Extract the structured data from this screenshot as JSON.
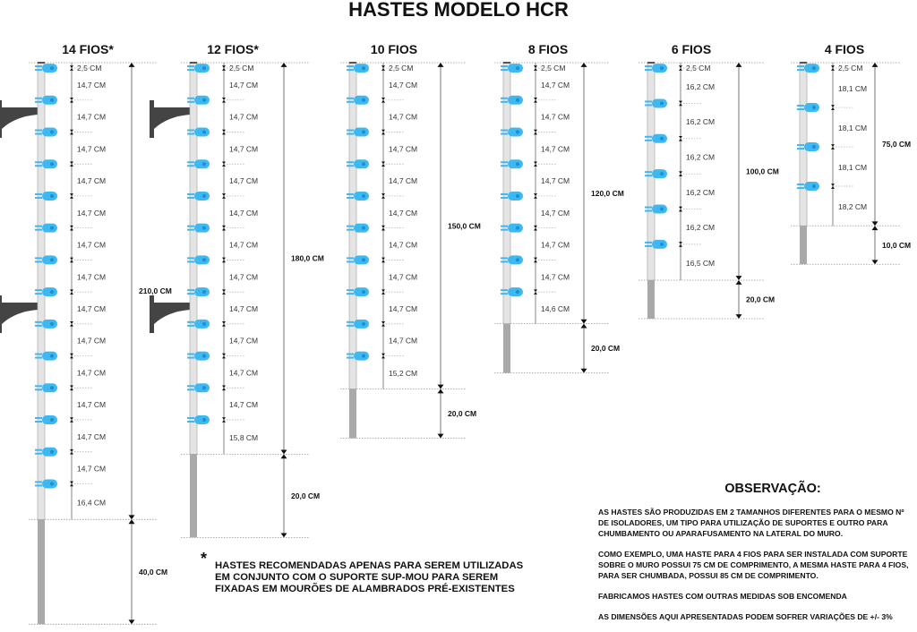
{
  "title": "HASTES MODELO HCR",
  "colors": {
    "insulator": "#3db8f0",
    "post": "#e4e4e4",
    "post_extension": "#a9a9a9",
    "bracket": "#444444"
  },
  "posts": [
    {
      "label": "14 FIOS*",
      "segments": [
        "2,5 CM",
        "14,7 CM",
        "14,7 CM",
        "14,7 CM",
        "14,7 CM",
        "14,7 CM",
        "14,7 CM",
        "14,7 CM",
        "14,7 CM",
        "14,7 CM",
        "14,7 CM",
        "14,7 CM",
        "14,7 CM",
        "14,7 CM",
        "16,4 CM"
      ],
      "total": "210,0 CM",
      "extension": "40,0 CM",
      "brackets": true
    },
    {
      "label": "12 FIOS*",
      "segments": [
        "2,5 CM",
        "14,7 CM",
        "14,7 CM",
        "14,7 CM",
        "14,7 CM",
        "14,7 CM",
        "14,7 CM",
        "14,7 CM",
        "14,7 CM",
        "14,7 CM",
        "14,7 CM",
        "14,7 CM",
        "15,8 CM"
      ],
      "total": "180,0 CM",
      "extension": "20,0 CM",
      "brackets": true
    },
    {
      "label": "10 FIOS",
      "segments": [
        "2,5 CM",
        "14,7 CM",
        "14,7 CM",
        "14,7 CM",
        "14,7 CM",
        "14,7 CM",
        "14,7 CM",
        "14,7 CM",
        "14,7 CM",
        "14,7 CM",
        "15,2 CM"
      ],
      "total": "150,0 CM",
      "extension": "20,0 CM",
      "brackets": false
    },
    {
      "label": "8 FIOS",
      "segments": [
        "2,5 CM",
        "14,7 CM",
        "14,7 CM",
        "14,7 CM",
        "14,7 CM",
        "14,7 CM",
        "14,7 CM",
        "14,7 CM",
        "14,6 CM"
      ],
      "total": "120,0 CM",
      "extension": "20,0 CM",
      "brackets": false
    },
    {
      "label": "6 FIOS",
      "segments": [
        "2,5 CM",
        "16,2 CM",
        "16,2 CM",
        "16,2 CM",
        "16,2 CM",
        "16,2 CM",
        "16,5 CM"
      ],
      "total": "100,0 CM",
      "extension": "20,0 CM",
      "brackets": false
    },
    {
      "label": "4 FIOS",
      "segments": [
        "2,5 CM",
        "18,1 CM",
        "18,1 CM",
        "18,1 CM",
        "18,2 CM"
      ],
      "total": "75,0 CM",
      "extension": "10,0 CM",
      "brackets": false
    }
  ],
  "footnote": {
    "mark": "*",
    "text": "HASTES RECOMENDADAS APENAS PARA SEREM UTILIZADAS EM CONJUNTO COM O SUPORTE SUP-MOU PARA SEREM FIXADAS EM MOURÕES DE ALAMBRADOS PRÉ-EXISTENTES"
  },
  "observacao": {
    "heading": "OBSERVAÇÃO:",
    "paragraphs": [
      "AS HASTES SÃO PRODUZIDAS EM 2 TAMANHOS DIFERENTES PARA O MESMO Nº DE ISOLADORES, UM TIPO PARA UTILIZAÇÃO DE SUPORTES E OUTRO PARA CHUMBAMENTO OU APARAFUSAMENTO NA LATERAL DO MURO.",
      "COMO EXEMPLO, UMA HASTE PARA 4 FIOS PARA SER INSTALADA COM SUPORTE SOBRE O MURO POSSUI 75 CM DE COMPRIMENTO, A MESMA HASTE PARA 4 FIOS, PARA SER CHUMBADA, POSSUI 85 CM DE COMPRIMENTO.",
      "FABRICAMOS HASTES COM OUTRAS MEDIDAS SOB ENCOMENDA",
      "AS DIMENSÕES AQUI APRESENTADAS PODEM SOFRER VARIAÇÕES DE +/- 3%"
    ]
  }
}
